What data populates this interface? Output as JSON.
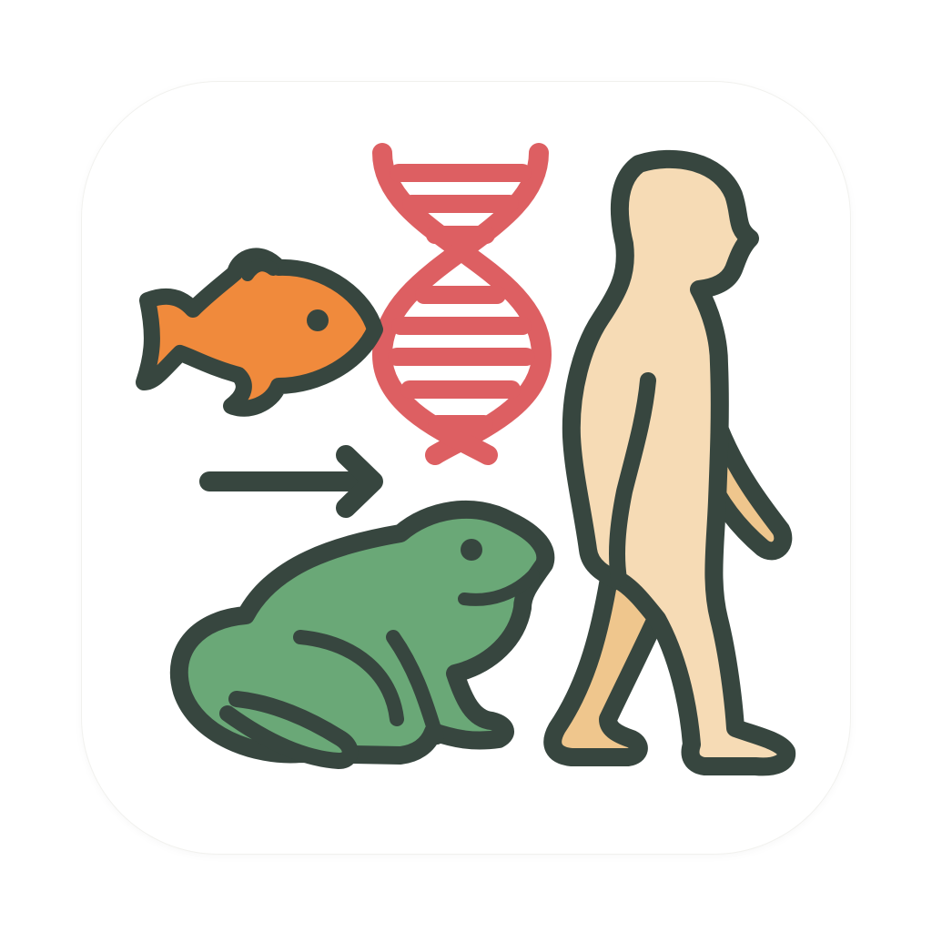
{
  "icon": {
    "subjects": [
      "fish-icon",
      "dna-icon",
      "arrow-right-icon",
      "frog-icon",
      "human-icon"
    ]
  },
  "colors": {
    "background": "#ffffff",
    "outline": "#37463f",
    "fish": "#f08a3c",
    "dna": "#dd5f62",
    "frog": "#6aa877",
    "skin": "#f6dbb5",
    "skin_shade": "#efc68d"
  }
}
